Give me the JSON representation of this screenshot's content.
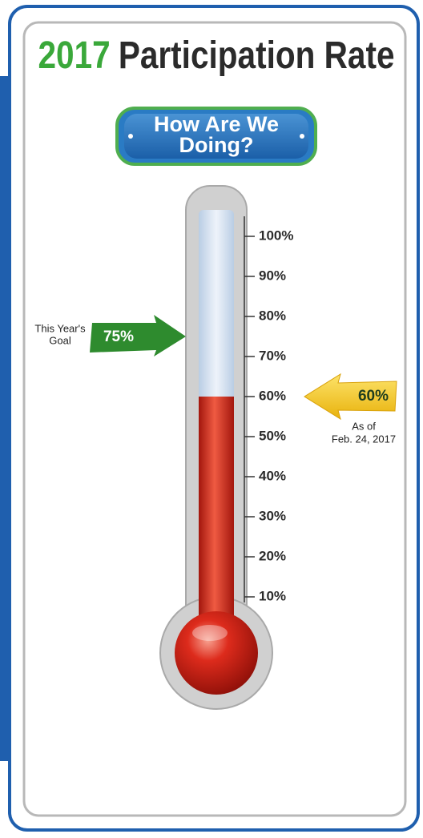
{
  "chart_data": {
    "type": "thermometer",
    "title_year": "2017",
    "title": "Participation Rate",
    "subtitle_lines": [
      "How Are We",
      "Doing?"
    ],
    "value": 60,
    "value_label": "60%",
    "value_color": "#c8261a",
    "value_annotation_lines": [
      "As of",
      "Feb. 24, 2017"
    ],
    "goal": 75,
    "goal_label": "75%",
    "goal_color": "#2e8b2e",
    "goal_annotation_lines": [
      "This Year's",
      "Goal"
    ],
    "ylim": [
      0,
      100
    ],
    "yticks": [
      {
        "value": 10,
        "label": "10%"
      },
      {
        "value": 20,
        "label": "20%"
      },
      {
        "value": 30,
        "label": "30%"
      },
      {
        "value": 40,
        "label": "40%"
      },
      {
        "value": 50,
        "label": "50%"
      },
      {
        "value": 60,
        "label": "60%"
      },
      {
        "value": 70,
        "label": "70%"
      },
      {
        "value": 80,
        "label": "80%"
      },
      {
        "value": 90,
        "label": "90%"
      },
      {
        "value": 100,
        "label": "100%"
      }
    ]
  }
}
